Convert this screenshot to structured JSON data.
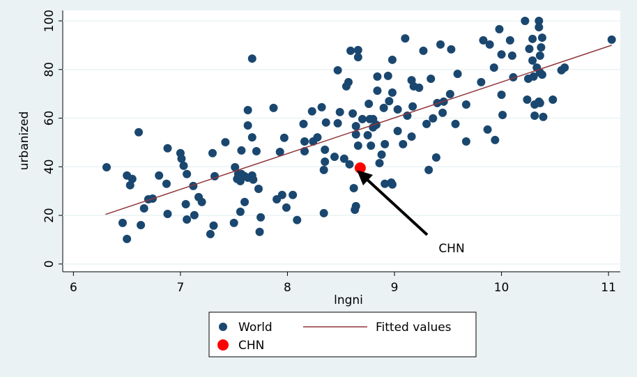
{
  "chart_data": {
    "type": "scatter",
    "x_label": "lngni",
    "y_label": "urbanized",
    "xlim": [
      5.9,
      11.11
    ],
    "ylim": [
      -3.2,
      104.3
    ],
    "xticks": [
      6,
      7,
      8,
      9,
      10,
      11
    ],
    "yticks": [
      0,
      20,
      40,
      60,
      80,
      100
    ],
    "grid": true,
    "annotation": "CHN",
    "series": [
      {
        "name": "World",
        "type": "scatter",
        "color": "#1a476f",
        "x": [
          6.31,
          6.46,
          6.5,
          6.5,
          6.53,
          6.55,
          6.61,
          6.63,
          6.66,
          6.7,
          6.74,
          6.8,
          6.87,
          6.88,
          6.88,
          7.0,
          7.01,
          7.03,
          7.06,
          7.05,
          7.06,
          7.12,
          7.13,
          7.17,
          7.2,
          7.28,
          7.3,
          7.31,
          7.32,
          7.42,
          7.5,
          7.51,
          7.53,
          7.54,
          7.56,
          7.56,
          7.57,
          7.57,
          7.6,
          7.6,
          7.63,
          7.63,
          7.63,
          7.67,
          7.67,
          7.67,
          7.68,
          7.71,
          7.73,
          7.74,
          7.75,
          7.87,
          7.9,
          7.93,
          7.95,
          7.97,
          7.99,
          8.05,
          8.09,
          8.15,
          8.16,
          8.16,
          8.23,
          8.24,
          8.28,
          8.32,
          8.34,
          8.34,
          8.35,
          8.35,
          8.36,
          8.44,
          8.47,
          8.47,
          8.49,
          8.53,
          8.55,
          8.57,
          8.58,
          8.59,
          8.61,
          8.62,
          8.63,
          8.64,
          8.64,
          8.64,
          8.66,
          8.66,
          8.66,
          8.7,
          8.75,
          8.76,
          8.77,
          8.78,
          8.8,
          8.8,
          8.83,
          8.84,
          8.84,
          8.86,
          8.88,
          8.9,
          8.91,
          8.91,
          8.94,
          8.95,
          8.97,
          8.98,
          8.98,
          8.98,
          9.03,
          9.03,
          9.08,
          9.1,
          9.12,
          9.16,
          9.16,
          9.17,
          9.18,
          9.23,
          9.27,
          9.3,
          9.32,
          9.34,
          9.36,
          9.39,
          9.4,
          9.43,
          9.45,
          9.46,
          9.52,
          9.53,
          9.57,
          9.59,
          9.67,
          9.67,
          9.81,
          9.83,
          9.87,
          9.89,
          9.93,
          9.94,
          9.98,
          10.0,
          10.0,
          10.01,
          10.08,
          10.1,
          10.11,
          10.22,
          10.24,
          10.25,
          10.26,
          10.29,
          10.29,
          10.3,
          10.31,
          10.31,
          10.33,
          10.35,
          10.35,
          10.35,
          10.36,
          10.36,
          10.36,
          10.37,
          10.38,
          10.38,
          10.39,
          10.48,
          10.56,
          10.59,
          11.03
        ],
        "values": [
          39.8,
          16.9,
          10.3,
          36.4,
          32.4,
          35,
          54.2,
          16,
          22.9,
          26.6,
          26.9,
          36.4,
          33,
          47.6,
          20.6,
          45.6,
          43.3,
          40.4,
          37,
          24.6,
          18.3,
          32.1,
          20.1,
          27.5,
          25.5,
          12.3,
          45.6,
          15.8,
          36.1,
          50.1,
          16.9,
          39.8,
          35,
          37,
          34.1,
          21.5,
          37,
          46.7,
          25.5,
          36.1,
          57,
          63.3,
          35.5,
          84.5,
          36.4,
          52.1,
          34.7,
          46.4,
          30.9,
          13.2,
          19.2,
          64.2,
          26.6,
          46.1,
          28.4,
          51.9,
          23.2,
          28.4,
          18.1,
          57.6,
          46.4,
          50.4,
          62.8,
          50.4,
          52.1,
          64.5,
          38.7,
          20.9,
          47,
          42.1,
          58.2,
          44.1,
          79.7,
          57.9,
          62.5,
          43.3,
          73.1,
          74.8,
          41,
          87.7,
          61.9,
          31.2,
          22.3,
          23.8,
          53.3,
          56.7,
          85.1,
          48.7,
          88,
          59.6,
          53,
          65.9,
          59.6,
          48.7,
          56.2,
          59.6,
          57.3,
          71.3,
          77.1,
          41.5,
          45,
          64.2,
          33,
          49.3,
          77.4,
          67,
          33.5,
          32.7,
          70.5,
          84,
          54.7,
          63.6,
          49.3,
          92.8,
          61,
          52.4,
          75.6,
          64.8,
          73.1,
          72.5,
          87.7,
          57.6,
          38.7,
          76.2,
          59.9,
          43.8,
          66.2,
          90.3,
          62.2,
          66.8,
          69.9,
          88.3,
          57.6,
          78.2,
          65.6,
          50.4,
          74.8,
          92,
          55.3,
          90.3,
          80.8,
          51,
          96.6,
          69.6,
          86.2,
          61.3,
          92,
          85.7,
          76.8,
          100,
          67.6,
          76.2,
          88.5,
          92.6,
          83.7,
          77.1,
          65.6,
          61,
          80.8,
          66.8,
          100,
          97.4,
          78.8,
          66.2,
          85.7,
          89.1,
          77.9,
          93.1,
          60.5,
          67.6,
          79.7,
          80.8,
          92.3
        ]
      },
      {
        "name": "Fitted values",
        "type": "line",
        "color": "#90353b",
        "x": [
          6.3,
          11.03
        ],
        "values": [
          20.4,
          90
        ]
      },
      {
        "name": "CHN",
        "type": "scatter",
        "color": "#ff0000",
        "x": [
          8.68
        ],
        "values": [
          39.5
        ]
      }
    ]
  }
}
